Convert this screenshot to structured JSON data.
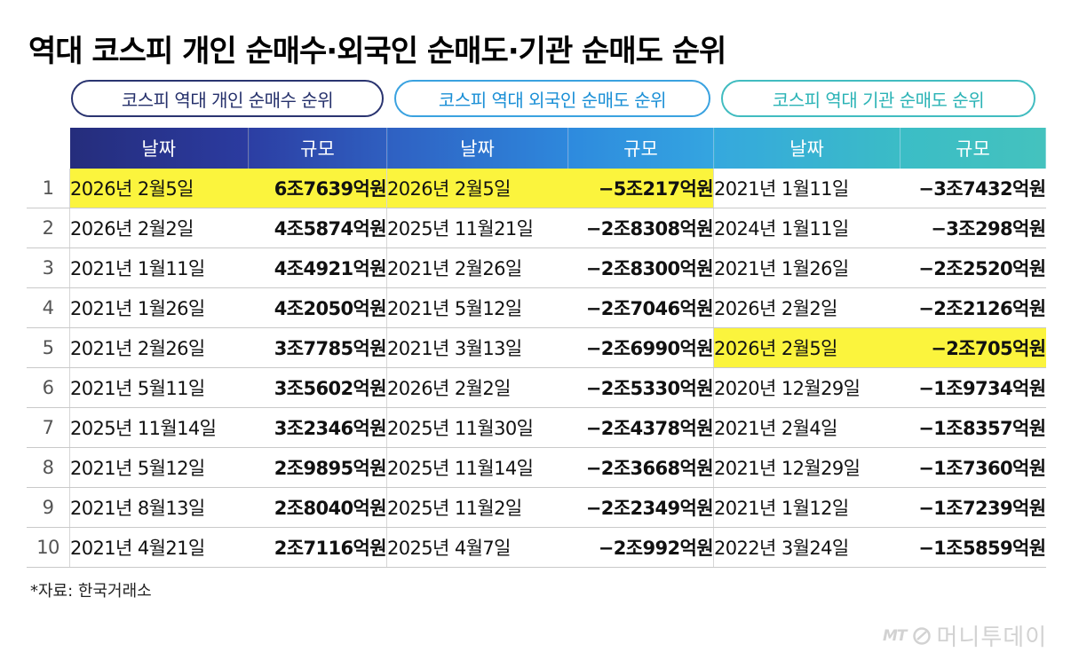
{
  "title": "역대 코스피 개인 순매수·외국인 순매도·기관 순매도 순위",
  "pills": {
    "individual": "코스피 역대 개인 순매수 순위",
    "foreign": "코스피 역대 외국인 순매도 순위",
    "institution": "코스피 역대 기관 순매도 순위"
  },
  "headers": {
    "date": "날짜",
    "amount": "규모"
  },
  "rows": [
    {
      "rank": "1",
      "ind_date": "2026년 2월5일",
      "ind_amt": "6조7639억원",
      "for_date": "2026년 2월5일",
      "for_amt": "−5조217억원",
      "ins_date": "2021년 1월11일",
      "ins_amt": "−3조7432억원"
    },
    {
      "rank": "2",
      "ind_date": "2026년 2월2일",
      "ind_amt": "4조5874억원",
      "for_date": "2025년 11월21일",
      "for_amt": "−2조8308억원",
      "ins_date": "2024년 1월11일",
      "ins_amt": "−3조298억원"
    },
    {
      "rank": "3",
      "ind_date": "2021년 1월11일",
      "ind_amt": "4조4921억원",
      "for_date": "2021년 2월26일",
      "for_amt": "−2조8300억원",
      "ins_date": "2021년 1월26일",
      "ins_amt": "−2조2520억원"
    },
    {
      "rank": "4",
      "ind_date": "2021년 1월26일",
      "ind_amt": "4조2050억원",
      "for_date": "2021년 5월12일",
      "for_amt": "−2조7046억원",
      "ins_date": "2026년 2월2일",
      "ins_amt": "−2조2126억원"
    },
    {
      "rank": "5",
      "ind_date": "2021년 2월26일",
      "ind_amt": "3조7785억원",
      "for_date": "2021년 3월13일",
      "for_amt": "−2조6990억원",
      "ins_date": "2026년 2월5일",
      "ins_amt": "−2조705억원"
    },
    {
      "rank": "6",
      "ind_date": "2021년 5월11일",
      "ind_amt": "3조5602억원",
      "for_date": "2026년 2월2일",
      "for_amt": "−2조5330억원",
      "ins_date": "2020년 12월29일",
      "ins_amt": "−1조9734억원"
    },
    {
      "rank": "7",
      "ind_date": "2025년 11월14일",
      "ind_amt": "3조2346억원",
      "for_date": "2025년 11월30일",
      "for_amt": "−2조4378억원",
      "ins_date": "2021년 2월4일",
      "ins_amt": "−1조8357억원"
    },
    {
      "rank": "8",
      "ind_date": "2021년 5월12일",
      "ind_amt": "2조9895억원",
      "for_date": "2025년 11월14일",
      "for_amt": "−2조3668억원",
      "ins_date": "2021년 12월29일",
      "ins_amt": "−1조7360억원"
    },
    {
      "rank": "9",
      "ind_date": "2021년 8월13일",
      "ind_amt": "2조8040억원",
      "for_date": "2025년 11월2일",
      "for_amt": "−2조2349억원",
      "ins_date": "2021년 1월12일",
      "ins_amt": "−1조7239억원"
    },
    {
      "rank": "10",
      "ind_date": "2021년 4월21일",
      "ind_amt": "2조7116억원",
      "for_date": "2025년 4월7일",
      "for_amt": "−2조992억원",
      "ins_date": "2022년 3월24일",
      "ins_amt": "−1조5859억원"
    }
  ],
  "source": "*자료: 한국거래소",
  "logo": {
    "mark": "MT",
    "name": "머니투데이"
  },
  "colors": {
    "highlight": "#fbf43d",
    "pill_individual": "#2a3470",
    "pill_foreign": "#3aa2e0",
    "pill_institution": "#41bcc0"
  }
}
